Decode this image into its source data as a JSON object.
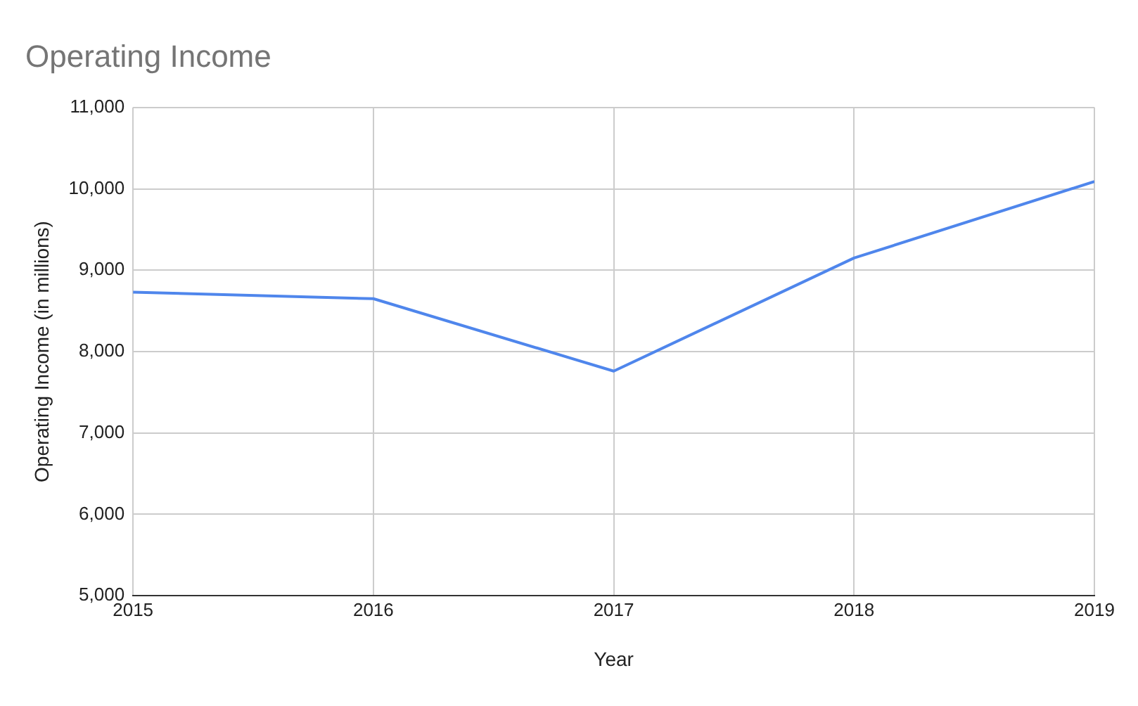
{
  "chart_data": {
    "type": "line",
    "title": "Operating Income",
    "xlabel": "Year",
    "ylabel": "Operating Income (in millions)",
    "x": [
      2015,
      2016,
      2017,
      2018,
      2019
    ],
    "series": [
      {
        "color": "#4f86ec",
        "values": [
          8730,
          8650,
          7760,
          9150,
          10090
        ]
      }
    ],
    "xlim": [
      2015,
      2019
    ],
    "xticks": [
      2015,
      2016,
      2017,
      2018,
      2019
    ],
    "ylim": [
      5000,
      11000
    ],
    "yticks": [
      {
        "value": 5000,
        "label": "5,000"
      },
      {
        "value": 6000,
        "label": "6,000"
      },
      {
        "value": 7000,
        "label": "7,000"
      },
      {
        "value": 8000,
        "label": "8,000"
      },
      {
        "value": 9000,
        "label": "9,000"
      },
      {
        "value": 10000,
        "label": "10,000"
      },
      {
        "value": 11000,
        "label": "11,000"
      }
    ],
    "grid": true,
    "legend": false,
    "marker": "none",
    "line_style": "solid"
  }
}
